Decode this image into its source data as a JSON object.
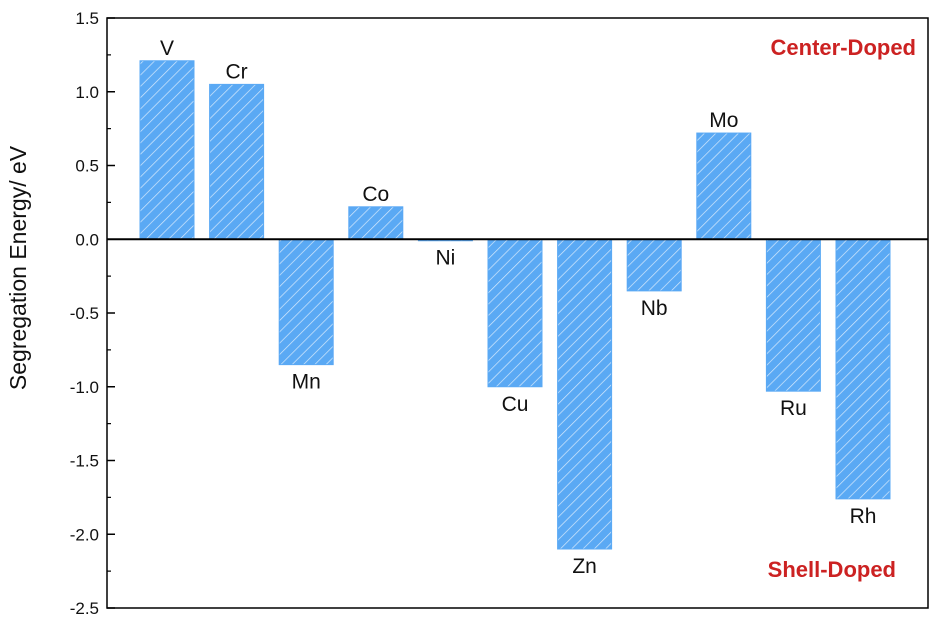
{
  "chart_data": {
    "type": "bar",
    "title": "",
    "xlabel": "",
    "ylabel": "Segregation Energy/ eV",
    "ylim": [
      -2.5,
      1.5
    ],
    "yticks": [
      1.5,
      1.0,
      0.5,
      0.0,
      -0.5,
      -1.0,
      -1.5,
      -2.0,
      -2.5
    ],
    "ytick_labels": [
      "1.5",
      "1.0",
      "0.5",
      "0.0",
      "-0.5",
      "-1.0",
      "-1.5",
      "-2.0",
      "-2.5"
    ],
    "categories": [
      "V",
      "Cr",
      "Mn",
      "Co",
      "Ni",
      "Cu",
      "Zn",
      "Nb",
      "Mo",
      "Ru",
      "Rh"
    ],
    "values": [
      1.21,
      1.05,
      -0.85,
      0.22,
      -0.01,
      -1.0,
      -2.1,
      -0.35,
      0.72,
      -1.03,
      -1.76
    ],
    "bar_color": "#5aa9f4",
    "hatch_color": "#ffffff",
    "grid": false,
    "annotations": [
      {
        "text": "Center-Doped",
        "color": "#cc2222",
        "placement": "top-right"
      },
      {
        "text": "Shell-Doped",
        "color": "#cc2222",
        "placement": "bottom-right"
      }
    ]
  }
}
